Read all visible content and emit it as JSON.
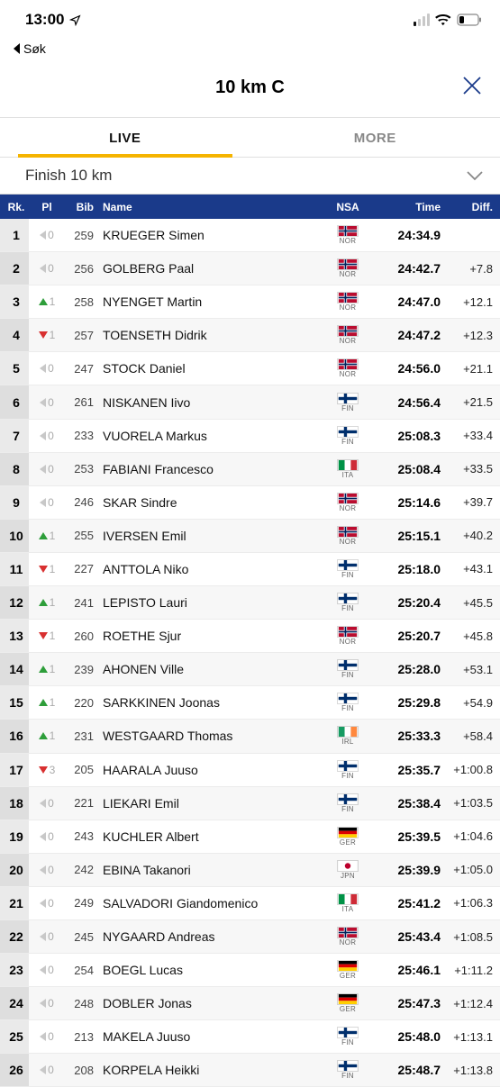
{
  "status": {
    "time": "13:00",
    "back_label": "Søk"
  },
  "title": "10 km C",
  "tabs": {
    "live": "LIVE",
    "more": "MORE"
  },
  "dropdown": "Finish 10 km",
  "headers": {
    "rk": "Rk.",
    "pl": "Pl",
    "bib": "Bib",
    "name": "Name",
    "nsa": "NSA",
    "time": "Time",
    "diff": "Diff."
  },
  "flags": {
    "NOR": {
      "bg": "#ba0c2f",
      "mode": "nordic",
      "cross": "#ffffff",
      "cross2": "#00205b"
    },
    "FIN": {
      "bg": "#ffffff",
      "mode": "nordic",
      "cross": "#002f6c",
      "cross2": "#002f6c"
    },
    "ITA": {
      "bg": "#ffffff",
      "mode": "tri",
      "c1": "#009246",
      "c2": "#ffffff",
      "c3": "#ce2b37"
    },
    "IRL": {
      "bg": "#ffffff",
      "mode": "tri",
      "c1": "#169b62",
      "c2": "#ffffff",
      "c3": "#ff883e"
    },
    "GER": {
      "bg": "#ffffff",
      "mode": "hstripe",
      "c1": "#000000",
      "c2": "#dd0000",
      "c3": "#ffce00"
    },
    "JPN": {
      "bg": "#ffffff",
      "mode": "dot",
      "dot": "#bc002d"
    }
  },
  "rows": [
    {
      "rk": "1",
      "move": "same",
      "mv": "0",
      "bib": "259",
      "name": "KRUEGER Simen",
      "nsa": "NOR",
      "time": "24:34.9",
      "diff": ""
    },
    {
      "rk": "2",
      "move": "same",
      "mv": "0",
      "bib": "256",
      "name": "GOLBERG Paal",
      "nsa": "NOR",
      "time": "24:42.7",
      "diff": "+7.8"
    },
    {
      "rk": "3",
      "move": "up",
      "mv": "1",
      "bib": "258",
      "name": "NYENGET Martin",
      "nsa": "NOR",
      "time": "24:47.0",
      "diff": "+12.1"
    },
    {
      "rk": "4",
      "move": "down",
      "mv": "1",
      "bib": "257",
      "name": "TOENSETH Didrik",
      "nsa": "NOR",
      "time": "24:47.2",
      "diff": "+12.3"
    },
    {
      "rk": "5",
      "move": "same",
      "mv": "0",
      "bib": "247",
      "name": "STOCK Daniel",
      "nsa": "NOR",
      "time": "24:56.0",
      "diff": "+21.1"
    },
    {
      "rk": "6",
      "move": "same",
      "mv": "0",
      "bib": "261",
      "name": "NISKANEN Iivo",
      "nsa": "FIN",
      "time": "24:56.4",
      "diff": "+21.5"
    },
    {
      "rk": "7",
      "move": "same",
      "mv": "0",
      "bib": "233",
      "name": "VUORELA Markus",
      "nsa": "FIN",
      "time": "25:08.3",
      "diff": "+33.4"
    },
    {
      "rk": "8",
      "move": "same",
      "mv": "0",
      "bib": "253",
      "name": "FABIANI Francesco",
      "nsa": "ITA",
      "time": "25:08.4",
      "diff": "+33.5"
    },
    {
      "rk": "9",
      "move": "same",
      "mv": "0",
      "bib": "246",
      "name": "SKAR Sindre",
      "nsa": "NOR",
      "time": "25:14.6",
      "diff": "+39.7"
    },
    {
      "rk": "10",
      "move": "up",
      "mv": "1",
      "bib": "255",
      "name": "IVERSEN Emil",
      "nsa": "NOR",
      "time": "25:15.1",
      "diff": "+40.2"
    },
    {
      "rk": "11",
      "move": "down",
      "mv": "1",
      "bib": "227",
      "name": "ANTTOLA Niko",
      "nsa": "FIN",
      "time": "25:18.0",
      "diff": "+43.1"
    },
    {
      "rk": "12",
      "move": "up",
      "mv": "1",
      "bib": "241",
      "name": "LEPISTO Lauri",
      "nsa": "FIN",
      "time": "25:20.4",
      "diff": "+45.5"
    },
    {
      "rk": "13",
      "move": "down",
      "mv": "1",
      "bib": "260",
      "name": "ROETHE Sjur",
      "nsa": "NOR",
      "time": "25:20.7",
      "diff": "+45.8"
    },
    {
      "rk": "14",
      "move": "up",
      "mv": "1",
      "bib": "239",
      "name": "AHONEN Ville",
      "nsa": "FIN",
      "time": "25:28.0",
      "diff": "+53.1"
    },
    {
      "rk": "15",
      "move": "up",
      "mv": "1",
      "bib": "220",
      "name": "SARKKINEN Joonas",
      "nsa": "FIN",
      "time": "25:29.8",
      "diff": "+54.9"
    },
    {
      "rk": "16",
      "move": "up",
      "mv": "1",
      "bib": "231",
      "name": "WESTGAARD Thomas",
      "nsa": "IRL",
      "time": "25:33.3",
      "diff": "+58.4"
    },
    {
      "rk": "17",
      "move": "down",
      "mv": "3",
      "bib": "205",
      "name": "HAARALA Juuso",
      "nsa": "FIN",
      "time": "25:35.7",
      "diff": "+1:00.8"
    },
    {
      "rk": "18",
      "move": "same",
      "mv": "0",
      "bib": "221",
      "name": "LIEKARI Emil",
      "nsa": "FIN",
      "time": "25:38.4",
      "diff": "+1:03.5"
    },
    {
      "rk": "19",
      "move": "same",
      "mv": "0",
      "bib": "243",
      "name": "KUCHLER Albert",
      "nsa": "GER",
      "time": "25:39.5",
      "diff": "+1:04.6"
    },
    {
      "rk": "20",
      "move": "same",
      "mv": "0",
      "bib": "242",
      "name": "EBINA Takanori",
      "nsa": "JPN",
      "time": "25:39.9",
      "diff": "+1:05.0"
    },
    {
      "rk": "21",
      "move": "same",
      "mv": "0",
      "bib": "249",
      "name": "SALVADORI Giandomenico",
      "nsa": "ITA",
      "time": "25:41.2",
      "diff": "+1:06.3"
    },
    {
      "rk": "22",
      "move": "same",
      "mv": "0",
      "bib": "245",
      "name": "NYGAARD Andreas",
      "nsa": "NOR",
      "time": "25:43.4",
      "diff": "+1:08.5"
    },
    {
      "rk": "23",
      "move": "same",
      "mv": "0",
      "bib": "254",
      "name": "BOEGL Lucas",
      "nsa": "GER",
      "time": "25:46.1",
      "diff": "+1:11.2"
    },
    {
      "rk": "24",
      "move": "same",
      "mv": "0",
      "bib": "248",
      "name": "DOBLER Jonas",
      "nsa": "GER",
      "time": "25:47.3",
      "diff": "+1:12.4"
    },
    {
      "rk": "25",
      "move": "same",
      "mv": "0",
      "bib": "213",
      "name": "MAKELA Juuso",
      "nsa": "FIN",
      "time": "25:48.0",
      "diff": "+1:13.1"
    },
    {
      "rk": "26",
      "move": "same",
      "mv": "0",
      "bib": "208",
      "name": "KORPELA Heikki",
      "nsa": "FIN",
      "time": "25:48.7",
      "diff": "+1:13.8"
    }
  ]
}
